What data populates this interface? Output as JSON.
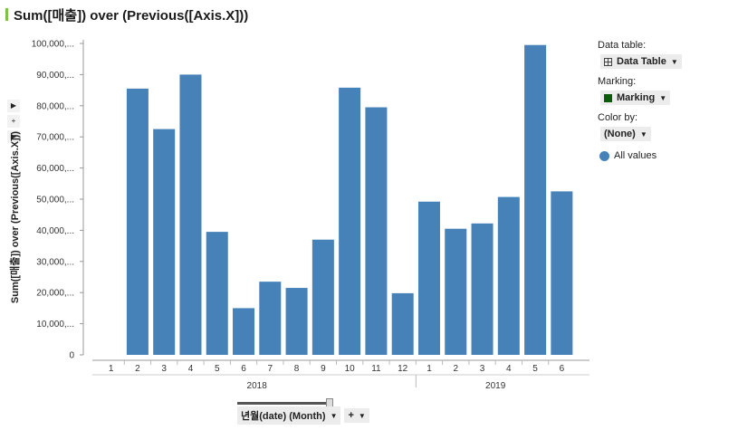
{
  "title": "Sum([매출]) over (Previous([Axis.X]))",
  "colors": {
    "bar": "#4682b8",
    "title_accent": "#7dc242",
    "marking": "#0a5c0a",
    "grid": "#cccccc"
  },
  "left_tools": {
    "expand1": "▶",
    "plus": "+",
    "expand2": "▶"
  },
  "chart_data": {
    "type": "bar",
    "title": "Sum([매출]) over (Previous([Axis.X]))",
    "ylabel": "Sum([매출]) over (Previous([Axis.X]))",
    "xlabel": "년월(date) (Month)",
    "ylim": [
      0,
      100000
    ],
    "yticks": [
      0,
      10000,
      20000,
      30000,
      40000,
      50000,
      60000,
      70000,
      80000,
      90000,
      100000
    ],
    "ytick_labels": [
      "0",
      "10,000,...",
      "20,000,...",
      "30,000,...",
      "40,000,...",
      "50,000,...",
      "60,000,...",
      "70,000,...",
      "80,000,...",
      "90,000,...",
      "100,000,..."
    ],
    "categories": [
      "1",
      "2",
      "3",
      "4",
      "5",
      "6",
      "7",
      "8",
      "9",
      "10",
      "11",
      "12",
      "1",
      "2",
      "3",
      "4",
      "5",
      "6"
    ],
    "years": [
      {
        "label": "2018",
        "count": 12
      },
      {
        "label": "2019",
        "count": 6
      }
    ],
    "values": [
      null,
      85500,
      72500,
      90000,
      39500,
      15000,
      23500,
      21500,
      37000,
      85800,
      79500,
      19800,
      49200,
      40500,
      42200,
      50700,
      99500,
      52500
    ],
    "grid": false,
    "legend": "right"
  },
  "x_axis_selector": {
    "label": "년월(date) (Month)",
    "plus": "+"
  },
  "legend": {
    "data_table_label": "Data table:",
    "data_table_value": "Data Table",
    "marking_label": "Marking:",
    "marking_value": "Marking",
    "color_by_label": "Color by:",
    "color_by_value": "(None)",
    "items": [
      {
        "label": "All values"
      }
    ]
  }
}
